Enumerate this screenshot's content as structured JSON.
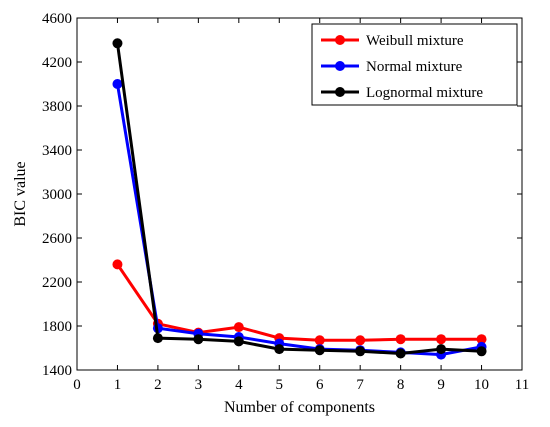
{
  "chart_data": {
    "type": "line",
    "title": "",
    "xlabel": "Number of components",
    "ylabel": "BIC value",
    "xlim": [
      0,
      11
    ],
    "ylim": [
      1400,
      4600
    ],
    "xticks": [
      "0",
      "1",
      "2",
      "3",
      "4",
      "5",
      "6",
      "7",
      "8",
      "9",
      "10",
      "11"
    ],
    "yticks": [
      "1400",
      "1800",
      "2200",
      "2600",
      "3000",
      "3400",
      "3800",
      "4200",
      "4600"
    ],
    "grid": false,
    "legend_position": "top-right",
    "x": [
      1,
      2,
      3,
      4,
      5,
      6,
      7,
      8,
      9,
      10
    ],
    "series": [
      {
        "name": "Weibull mixture",
        "color": "#ff0000",
        "values": [
          2360,
          1820,
          1740,
          1790,
          1690,
          1670,
          1670,
          1680,
          1680,
          1680
        ]
      },
      {
        "name": "Normal mixture",
        "color": "#0000ff",
        "values": [
          4000,
          1780,
          1730,
          1700,
          1640,
          1590,
          1580,
          1560,
          1540,
          1610
        ]
      },
      {
        "name": "Lognormal mixture",
        "color": "#000000",
        "values": [
          4370,
          1690,
          1680,
          1660,
          1590,
          1580,
          1570,
          1550,
          1590,
          1570
        ]
      }
    ]
  }
}
